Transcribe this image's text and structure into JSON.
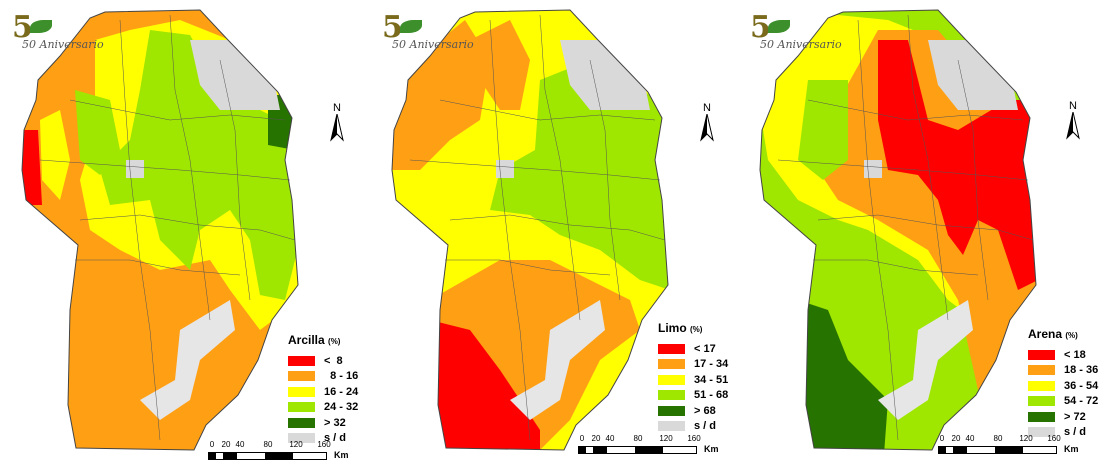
{
  "logo_text": "50 Aniversario",
  "north_label": "N",
  "scale": {
    "ticks": [
      "0",
      "20",
      "40",
      "80",
      "120",
      "160"
    ],
    "unit": "Km"
  },
  "colors": {
    "red": "#ff0000",
    "orange": "#ff9f14",
    "yellow": "#ffff00",
    "lightgreen": "#9fe600",
    "darkgreen": "#267300",
    "gray": "#d9d9d9"
  },
  "maps": [
    {
      "title": "Arcilla",
      "unit": "(%)",
      "legend": [
        {
          "label": "<  8",
          "color": "#ff0000"
        },
        {
          "label": "  8 - 16",
          "color": "#ff9f14"
        },
        {
          "label": "16 - 24",
          "color": "#ffff00"
        },
        {
          "label": "24 - 32",
          "color": "#9fe600"
        },
        {
          "label": "> 32",
          "color": "#267300"
        },
        {
          "label": "s / d",
          "color": "#d9d9d9"
        }
      ]
    },
    {
      "title": "Limo",
      "unit": "(%)",
      "legend": [
        {
          "label": "< 17",
          "color": "#ff0000"
        },
        {
          "label": "17 - 34",
          "color": "#ff9f14"
        },
        {
          "label": "34 - 51",
          "color": "#ffff00"
        },
        {
          "label": "51 - 68",
          "color": "#9fe600"
        },
        {
          "label": "> 68",
          "color": "#267300"
        },
        {
          "label": "s / d",
          "color": "#d9d9d9"
        }
      ]
    },
    {
      "title": "Arena",
      "unit": "(%)",
      "legend": [
        {
          "label": "< 18",
          "color": "#ff0000"
        },
        {
          "label": "18 - 36",
          "color": "#ff9f14"
        },
        {
          "label": "36 - 54",
          "color": "#ffff00"
        },
        {
          "label": "54 - 72",
          "color": "#9fe600"
        },
        {
          "label": "> 72",
          "color": "#267300"
        },
        {
          "label": "s / d",
          "color": "#d9d9d9"
        }
      ]
    }
  ]
}
